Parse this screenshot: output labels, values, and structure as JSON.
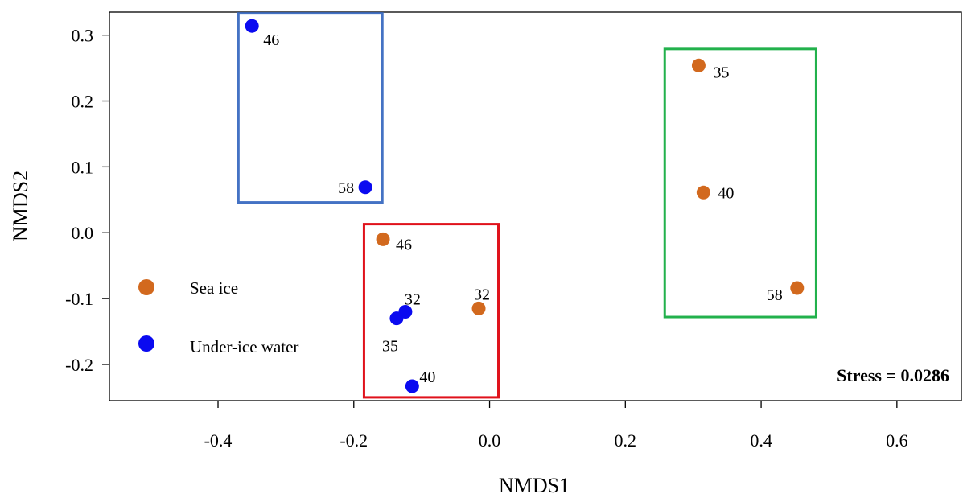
{
  "chart_data": {
    "type": "scatter",
    "xlabel": "NMDS1",
    "ylabel": "NMDS2",
    "xlim": [
      -0.56,
      0.695
    ],
    "ylim": [
      -0.255,
      0.335
    ],
    "x_ticks": [
      -0.4,
      -0.2,
      0.0,
      0.2,
      0.4,
      0.6
    ],
    "x_tick_labels": [
      "-0.4",
      "-0.2",
      "0.0",
      "0.2",
      "0.4",
      "0.6"
    ],
    "y_ticks": [
      -0.2,
      -0.1,
      0.0,
      0.1,
      0.2,
      0.3
    ],
    "y_tick_labels": [
      "-0.2",
      "-0.1",
      "0.0",
      "0.1",
      "0.2",
      "0.3"
    ],
    "grid": false,
    "legend_position": "left",
    "annotation": "Stress = 0.0286",
    "series": [
      {
        "name": "Sea ice",
        "color": "#D2691E",
        "points": [
          {
            "label": "35",
            "x": 0.308,
            "y": 0.254
          },
          {
            "label": "40",
            "x": 0.315,
            "y": 0.061
          },
          {
            "label": "58",
            "x": 0.453,
            "y": -0.084
          },
          {
            "label": "46",
            "x": -0.157,
            "y": -0.01
          },
          {
            "label": "32",
            "x": -0.016,
            "y": -0.115
          }
        ]
      },
      {
        "name": "Under-ice water",
        "color": "#0A0AF0",
        "points": [
          {
            "label": "46",
            "x": -0.35,
            "y": 0.314
          },
          {
            "label": "58",
            "x": -0.183,
            "y": 0.069
          },
          {
            "label": "32",
            "x": -0.124,
            "y": -0.12
          },
          {
            "label": "35",
            "x": -0.137,
            "y": -0.13
          },
          {
            "label": "40",
            "x": -0.114,
            "y": -0.233
          }
        ]
      }
    ],
    "group_boxes": [
      {
        "color": "#4472C4",
        "x": [
          -0.37,
          -0.158
        ],
        "y": [
          0.046,
          0.333
        ]
      },
      {
        "color": "#E0121B",
        "x": [
          -0.185,
          0.013
        ],
        "y": [
          -0.25,
          0.013
        ]
      },
      {
        "color": "#22B14C",
        "x": [
          0.258,
          0.481
        ],
        "y": [
          -0.128,
          0.279
        ]
      }
    ]
  }
}
